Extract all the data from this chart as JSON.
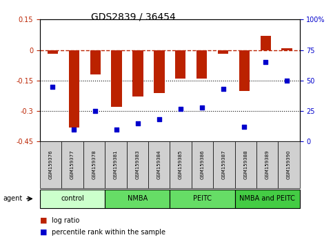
{
  "title": "GDS2839 / 36454",
  "samples": [
    "GSM159376",
    "GSM159377",
    "GSM159378",
    "GSM159381",
    "GSM159383",
    "GSM159384",
    "GSM159385",
    "GSM159386",
    "GSM159387",
    "GSM159388",
    "GSM159389",
    "GSM159390"
  ],
  "log_ratio": [
    -0.02,
    -0.38,
    -0.12,
    -0.28,
    -0.23,
    -0.21,
    -0.14,
    -0.14,
    -0.02,
    -0.2,
    0.07,
    0.01
  ],
  "percentile_rank": [
    45,
    10,
    25,
    10,
    15,
    18,
    27,
    28,
    43,
    12,
    65,
    50
  ],
  "bar_color": "#bb2200",
  "dot_color": "#0000cc",
  "ylim_left": [
    -0.45,
    0.15
  ],
  "ylim_right": [
    0,
    100
  ],
  "yticks_left": [
    -0.45,
    -0.3,
    -0.15,
    0.0,
    0.15
  ],
  "ytick_labels_left": [
    "-0.45",
    "-0.3",
    "-0.15",
    "0",
    "0.15"
  ],
  "yticks_right": [
    0,
    25,
    50,
    75,
    100
  ],
  "ytick_labels_right": [
    "0",
    "25",
    "50",
    "75",
    "100%"
  ],
  "hline_y": 0.0,
  "dotline1": -0.15,
  "dotline2": -0.3,
  "groups": [
    {
      "label": "control",
      "start": 0,
      "end": 3,
      "color": "#ccffcc"
    },
    {
      "label": "NMBA",
      "start": 3,
      "end": 6,
      "color": "#66dd66"
    },
    {
      "label": "PEITC",
      "start": 6,
      "end": 9,
      "color": "#66dd66"
    },
    {
      "label": "NMBA and PEITC",
      "start": 9,
      "end": 12,
      "color": "#44cc44"
    }
  ],
  "legend_bar_label": "log ratio",
  "legend_dot_label": "percentile rank within the sample",
  "agent_label": "agent"
}
